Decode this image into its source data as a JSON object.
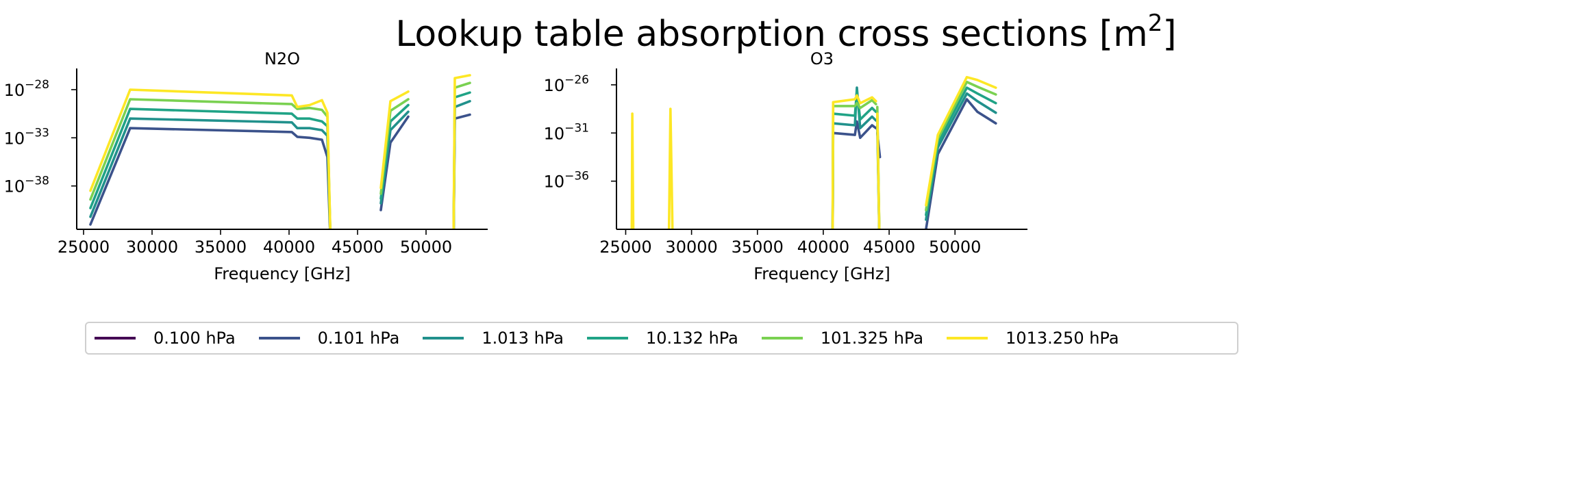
{
  "figure": {
    "title_text": "Lookup table absorption cross sections [m",
    "title_sup": "2",
    "title_end": "]"
  },
  "legend": {
    "entries": [
      {
        "label": "0.100 hPa",
        "color": "#440154"
      },
      {
        "label": "0.101 hPa",
        "color": "#3b528b"
      },
      {
        "label": "1.013 hPa",
        "color": "#21918c"
      },
      {
        "label": "10.132 hPa",
        "color": "#20a386"
      },
      {
        "label": "101.325 hPa",
        "color": "#7ad151"
      },
      {
        "label": "1013.250 hPa",
        "color": "#fde725"
      }
    ]
  },
  "chart_data": [
    {
      "type": "line",
      "title": "N2O",
      "xlabel": "Frequency [GHz]",
      "ylabel": "",
      "yscale": "log",
      "xlim": [
        24500,
        54500
      ],
      "ylim_log10": [
        -42.5,
        -25.8
      ],
      "xticks": [
        25000,
        30000,
        35000,
        40000,
        45000,
        50000
      ],
      "xtick_labels": [
        "25000",
        "30000",
        "35000",
        "40000",
        "45000",
        "50000"
      ],
      "yticks_log10": [
        -38,
        -33,
        -28
      ],
      "ytick_labels": [
        "10^-38",
        "10^-33",
        "10^-28"
      ],
      "grid": false,
      "segments": [
        [
          25500,
          28400,
          40200,
          40600,
          41500,
          42400,
          42800,
          43050
        ],
        [
          46700,
          47400,
          48700
        ],
        [
          52000,
          52100,
          53200
        ]
      ],
      "series": [
        {
          "label": "0.101 hPa",
          "color": "#3b528b",
          "y_log10": [
            [
              -42.0,
              -32.0,
              -32.4,
              -32.9,
              -33.0,
              -33.2,
              -35.0,
              -45.0
            ],
            [
              -40.5,
              -33.5,
              -30.8
            ],
            [
              -45.0,
              -31.0,
              -30.6
            ]
          ]
        },
        {
          "label": "1.013 hPa",
          "color": "#21918c",
          "y_log10": [
            [
              -41.2,
              -31.0,
              -31.4,
              -32.0,
              -32.0,
              -32.2,
              -32.8,
              -45.0
            ],
            [
              -39.8,
              -32.2,
              -30.3
            ],
            [
              -45.0,
              -29.8,
              -29.2
            ]
          ]
        },
        {
          "label": "10.132 hPa",
          "color": "#20a386",
          "y_log10": [
            [
              -40.3,
              -30.0,
              -30.5,
              -31.0,
              -31.0,
              -31.3,
              -31.8,
              -45.0
            ],
            [
              -39.3,
              -31.3,
              -29.6
            ],
            [
              -45.0,
              -28.8,
              -28.3
            ]
          ]
        },
        {
          "label": "101.325 hPa",
          "color": "#7ad151",
          "y_log10": [
            [
              -39.4,
              -29.0,
              -29.5,
              -30.0,
              -29.9,
              -30.1,
              -30.8,
              -45.0
            ],
            [
              -38.8,
              -30.2,
              -29.0
            ],
            [
              -45.0,
              -27.8,
              -27.3
            ]
          ]
        },
        {
          "label": "1013.250 hPa",
          "color": "#fde725",
          "y_log10": [
            [
              -38.5,
              -28.0,
              -28.6,
              -29.8,
              -29.6,
              -29.1,
              -30.4,
              -45.0
            ],
            [
              -38.2,
              -29.2,
              -28.2
            ],
            [
              -45.0,
              -26.8,
              -26.5
            ]
          ]
        }
      ]
    },
    {
      "type": "line",
      "title": "O3",
      "xlabel": "Frequency [GHz]",
      "ylabel": "",
      "yscale": "log",
      "xlim": [
        24300,
        55500
      ],
      "ylim_log10": [
        -41.0,
        -24.3
      ],
      "xticks": [
        25000,
        30000,
        35000,
        40000,
        45000,
        50000
      ],
      "xtick_labels": [
        "25000",
        "30000",
        "35000",
        "40000",
        "45000",
        "50000"
      ],
      "yticks_log10": [
        -36,
        -31,
        -26
      ],
      "ytick_labels": [
        "10^-36",
        "10^-31",
        "10^-26"
      ],
      "grid": false,
      "segments": [
        [
          25450,
          25500,
          25600
        ],
        [
          28250,
          28400,
          28600
        ],
        [
          40700,
          40750,
          42400,
          42550,
          42800,
          43700,
          44000
        ],
        [
          44100,
          44300
        ],
        [
          47800,
          48700,
          50900,
          51700,
          53100
        ]
      ],
      "series": [
        {
          "label": "0.101 hPa",
          "color": "#3b528b",
          "y_log10": [
            [
              -45.0,
              -45.0,
              -45.0
            ],
            [
              -45.0,
              -45.0,
              -45.0
            ],
            [
              -45.0,
              -31.0,
              -31.2,
              -29.8,
              -31.5,
              -30.2,
              -30.5
            ],
            [
              -31.0,
              -33.5
            ],
            [
              -41.0,
              -33.2,
              -27.5,
              -28.8,
              -30.0
            ]
          ]
        },
        {
          "label": "1.013 hPa",
          "color": "#21918c",
          "y_log10": [
            [
              -45.0,
              -45.0,
              -45.0
            ],
            [
              -45.0,
              -45.0,
              -45.0
            ],
            [
              -45.0,
              -30.0,
              -30.2,
              -26.3,
              -30.5,
              -29.3,
              -29.7
            ],
            [
              -30.3,
              -45.0
            ],
            [
              -40.0,
              -32.5,
              -26.9,
              -27.7,
              -28.9
            ]
          ]
        },
        {
          "label": "10.132 hPa",
          "color": "#20a386",
          "y_log10": [
            [
              -45.0,
              -45.0,
              -45.0
            ],
            [
              -45.0,
              -45.0,
              -45.0
            ],
            [
              -45.0,
              -29.0,
              -29.2,
              -26.6,
              -29.6,
              -28.4,
              -28.8
            ],
            [
              -29.2,
              -45.0
            ],
            [
              -39.5,
              -32.0,
              -26.3,
              -26.9,
              -27.9
            ]
          ]
        },
        {
          "label": "101.325 hPa",
          "color": "#7ad151",
          "y_log10": [
            [
              -45.0,
              -45.0,
              -45.0
            ],
            [
              -45.0,
              -45.0,
              -45.0
            ],
            [
              -45.0,
              -28.2,
              -28.2,
              -27.9,
              -28.4,
              -27.6,
              -28.0
            ],
            [
              -28.3,
              -45.0
            ],
            [
              -39.0,
              -31.6,
              -25.7,
              -26.2,
              -27.0
            ]
          ]
        },
        {
          "label": "1013.250 hPa",
          "color": "#fde725",
          "y_log10": [
            [
              -45.0,
              -29.0,
              -45.0
            ],
            [
              -45.0,
              -28.5,
              -45.0
            ],
            [
              -45.0,
              -27.8,
              -27.5,
              -27.1,
              -27.9,
              -27.3,
              -27.7
            ],
            [
              -29.0,
              -45.0
            ],
            [
              -38.5,
              -31.2,
              -25.2,
              -25.5,
              -26.3
            ]
          ]
        }
      ]
    }
  ]
}
